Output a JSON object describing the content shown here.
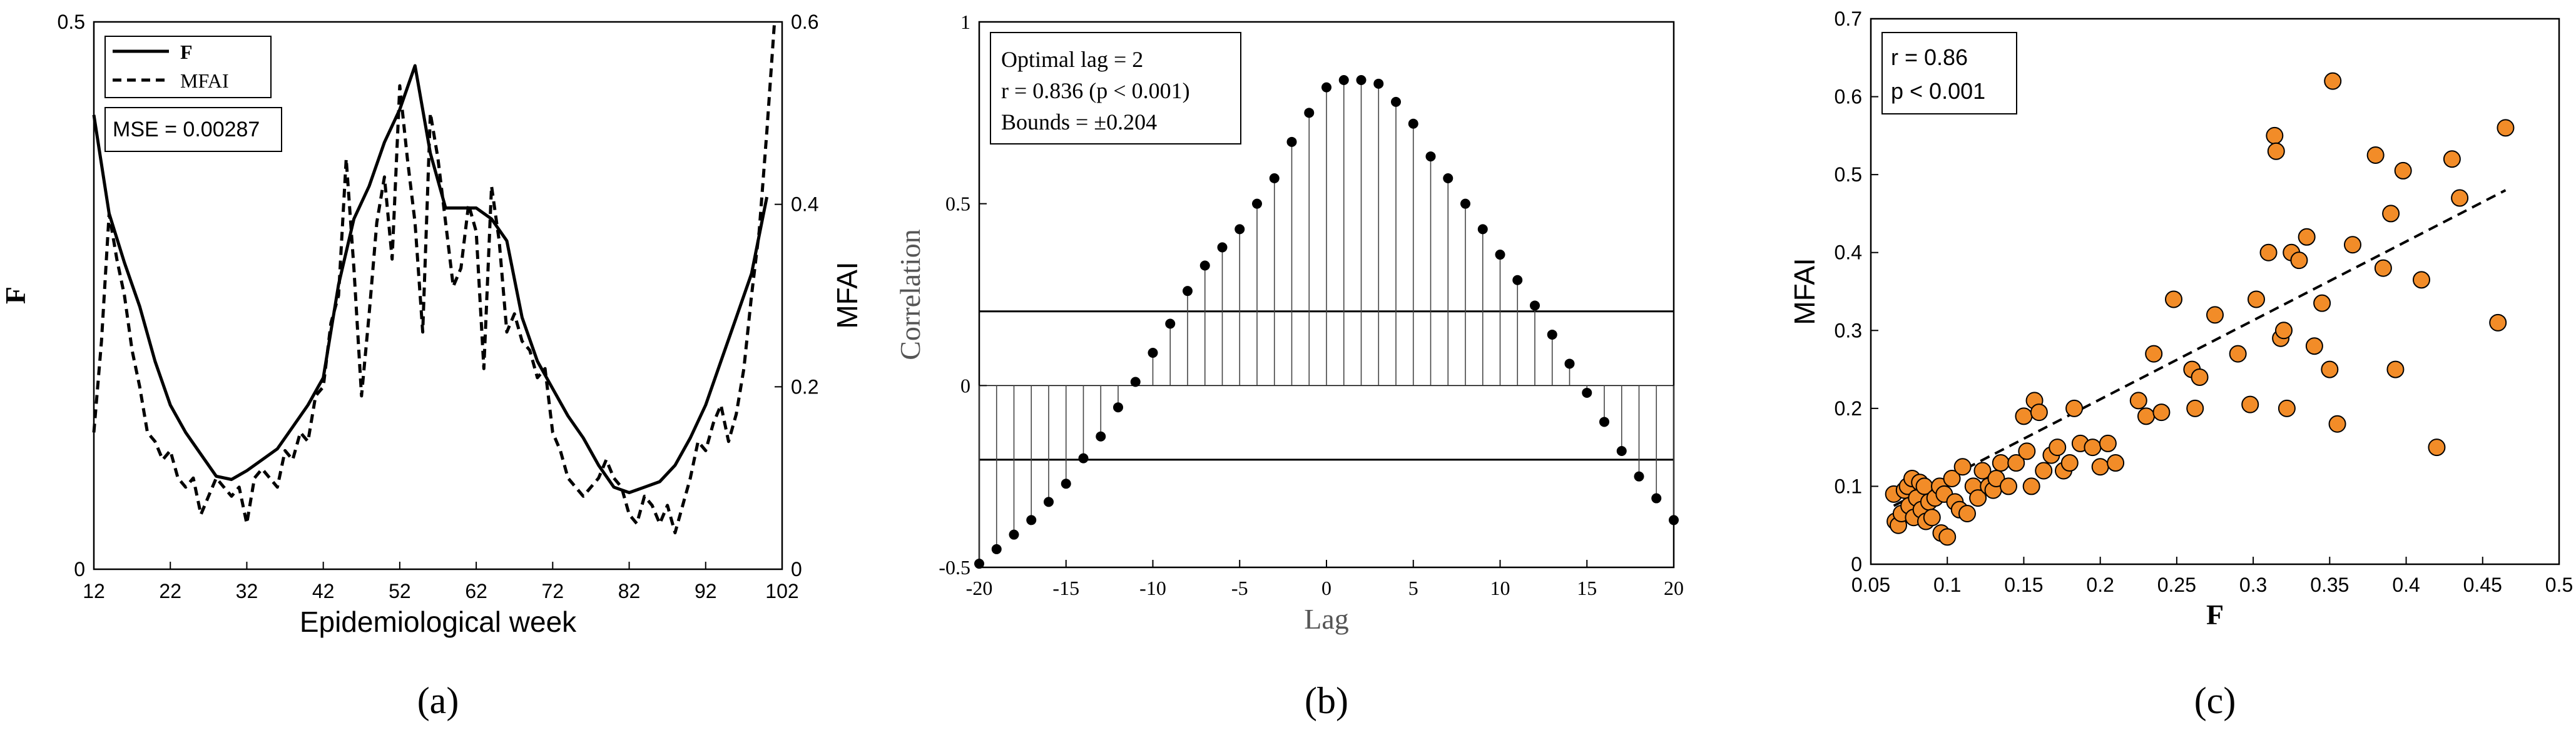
{
  "figure": {
    "captions": [
      "(a)",
      "(b)",
      "(c)"
    ]
  },
  "chart_data": [
    {
      "id": "a",
      "type": "line",
      "caption": "(a)",
      "xlabel": "Epidemiological week",
      "ylabel_left": "F",
      "ylabel_right": "MFAI",
      "xlim": [
        12,
        102
      ],
      "ylim_left": [
        0,
        0.5
      ],
      "ylim_right": [
        0,
        0.6
      ],
      "xticks": [
        12,
        22,
        32,
        42,
        52,
        62,
        72,
        82,
        92,
        102
      ],
      "yticks_left": [
        0,
        0.5
      ],
      "yticks_right": [
        0,
        0.2,
        0.4,
        0.6
      ],
      "annotation": "MSE = 0.00287",
      "series": [
        {
          "name": "F",
          "style": "solid",
          "axis": "left",
          "x": [
            12,
            14,
            16,
            18,
            20,
            22,
            24,
            26,
            28,
            30,
            32,
            34,
            36,
            38,
            40,
            42,
            44,
            46,
            48,
            50,
            52,
            54,
            56,
            58,
            60,
            62,
            64,
            66,
            68,
            70,
            72,
            74,
            76,
            78,
            80,
            82,
            84,
            86,
            88,
            90,
            92,
            94,
            96,
            98,
            100
          ],
          "values": [
            0.415,
            0.325,
            0.28,
            0.24,
            0.19,
            0.15,
            0.125,
            0.105,
            0.085,
            0.082,
            0.09,
            0.1,
            0.11,
            0.13,
            0.15,
            0.175,
            0.26,
            0.32,
            0.35,
            0.39,
            0.42,
            0.46,
            0.38,
            0.33,
            0.33,
            0.33,
            0.32,
            0.3,
            0.23,
            0.19,
            0.165,
            0.14,
            0.12,
            0.095,
            0.075,
            0.07,
            0.075,
            0.08,
            0.095,
            0.12,
            0.15,
            0.19,
            0.23,
            0.27,
            0.34
          ]
        },
        {
          "name": "MFAI",
          "style": "dashed",
          "axis": "right",
          "x": [
            12,
            13,
            14,
            15,
            16,
            17,
            18,
            19,
            20,
            21,
            22,
            23,
            24,
            25,
            26,
            27,
            28,
            29,
            30,
            31,
            32,
            33,
            34,
            35,
            36,
            37,
            38,
            39,
            40,
            41,
            42,
            43,
            44,
            45,
            46,
            47,
            48,
            49,
            50,
            51,
            52,
            53,
            54,
            55,
            56,
            57,
            58,
            59,
            60,
            61,
            62,
            63,
            64,
            65,
            66,
            67,
            68,
            69,
            70,
            71,
            72,
            73,
            74,
            75,
            76,
            77,
            78,
            79,
            80,
            81,
            82,
            83,
            84,
            85,
            86,
            87,
            88,
            89,
            90,
            91,
            92,
            93,
            94,
            95,
            96,
            97,
            98,
            99,
            100,
            101
          ],
          "values": [
            0.15,
            0.25,
            0.39,
            0.34,
            0.3,
            0.24,
            0.2,
            0.15,
            0.14,
            0.12,
            0.13,
            0.1,
            0.09,
            0.1,
            0.06,
            0.08,
            0.1,
            0.09,
            0.08,
            0.09,
            0.05,
            0.1,
            0.11,
            0.1,
            0.09,
            0.13,
            0.12,
            0.15,
            0.14,
            0.19,
            0.2,
            0.27,
            0.3,
            0.45,
            0.33,
            0.19,
            0.28,
            0.38,
            0.43,
            0.34,
            0.53,
            0.45,
            0.38,
            0.26,
            0.5,
            0.45,
            0.38,
            0.31,
            0.33,
            0.4,
            0.37,
            0.22,
            0.42,
            0.36,
            0.26,
            0.28,
            0.25,
            0.24,
            0.21,
            0.22,
            0.15,
            0.13,
            0.1,
            0.09,
            0.08,
            0.09,
            0.1,
            0.12,
            0.1,
            0.09,
            0.06,
            0.05,
            0.08,
            0.07,
            0.05,
            0.07,
            0.04,
            0.07,
            0.1,
            0.14,
            0.13,
            0.16,
            0.18,
            0.14,
            0.17,
            0.22,
            0.3,
            0.37,
            0.48,
            0.6
          ]
        }
      ]
    },
    {
      "id": "b",
      "type": "stem",
      "caption": "(b)",
      "xlabel": "Lag",
      "ylabel": "Correlation",
      "xlim": [
        -20,
        20
      ],
      "ylim": [
        -0.5,
        1
      ],
      "xticks": [
        -20,
        -15,
        -10,
        -5,
        0,
        5,
        10,
        15,
        20
      ],
      "yticks": [
        -0.5,
        0,
        0.5,
        1
      ],
      "bounds": 0.204,
      "annotation": [
        "Optimal lag = 2",
        "r = 0.836 (p < 0.001)",
        "Bounds = ±0.204"
      ],
      "x": [
        -20,
        -19,
        -18,
        -17,
        -16,
        -15,
        -14,
        -13,
        -12,
        -11,
        -10,
        -9,
        -8,
        -7,
        -6,
        -5,
        -4,
        -3,
        -2,
        -1,
        0,
        1,
        2,
        3,
        4,
        5,
        6,
        7,
        8,
        9,
        10,
        11,
        12,
        13,
        14,
        15,
        16,
        17,
        18,
        19,
        20
      ],
      "values": [
        -0.49,
        -0.45,
        -0.41,
        -0.37,
        -0.32,
        -0.27,
        -0.2,
        -0.14,
        -0.06,
        0.01,
        0.09,
        0.17,
        0.26,
        0.33,
        0.38,
        0.43,
        0.5,
        0.57,
        0.67,
        0.75,
        0.82,
        0.84,
        0.84,
        0.83,
        0.78,
        0.72,
        0.63,
        0.57,
        0.5,
        0.43,
        0.36,
        0.29,
        0.22,
        0.14,
        0.06,
        -0.02,
        -0.1,
        -0.18,
        -0.25,
        -0.31,
        -0.37
      ]
    },
    {
      "id": "c",
      "type": "scatter",
      "caption": "(c)",
      "xlabel": "F",
      "ylabel": "MFAI",
      "xlim": [
        0.05,
        0.5
      ],
      "ylim": [
        0,
        0.7
      ],
      "xticks": [
        0.05,
        0.1,
        0.15,
        0.2,
        0.25,
        0.3,
        0.35,
        0.4,
        0.45,
        0.5
      ],
      "yticks": [
        0,
        0.1,
        0.2,
        0.3,
        0.4,
        0.5,
        0.6,
        0.7
      ],
      "annotation": [
        "r = 0.86",
        "p < 0.001"
      ],
      "point_color": "#F28C28",
      "trendline": {
        "x": [
          0.065,
          0.465
        ],
        "y": [
          0.075,
          0.48
        ]
      },
      "points": [
        [
          0.065,
          0.09
        ],
        [
          0.066,
          0.055
        ],
        [
          0.068,
          0.05
        ],
        [
          0.07,
          0.065
        ],
        [
          0.072,
          0.095
        ],
        [
          0.074,
          0.1
        ],
        [
          0.075,
          0.075
        ],
        [
          0.077,
          0.11
        ],
        [
          0.078,
          0.06
        ],
        [
          0.08,
          0.085
        ],
        [
          0.082,
          0.105
        ],
        [
          0.083,
          0.07
        ],
        [
          0.085,
          0.1
        ],
        [
          0.086,
          0.055
        ],
        [
          0.088,
          0.08
        ],
        [
          0.09,
          0.06
        ],
        [
          0.092,
          0.085
        ],
        [
          0.095,
          0.1
        ],
        [
          0.096,
          0.04
        ],
        [
          0.098,
          0.09
        ],
        [
          0.1,
          0.035
        ],
        [
          0.103,
          0.11
        ],
        [
          0.105,
          0.08
        ],
        [
          0.108,
          0.07
        ],
        [
          0.11,
          0.125
        ],
        [
          0.113,
          0.065
        ],
        [
          0.117,
          0.1
        ],
        [
          0.12,
          0.085
        ],
        [
          0.123,
          0.12
        ],
        [
          0.127,
          0.1
        ],
        [
          0.13,
          0.095
        ],
        [
          0.132,
          0.11
        ],
        [
          0.135,
          0.13
        ],
        [
          0.14,
          0.1
        ],
        [
          0.145,
          0.13
        ],
        [
          0.15,
          0.19
        ],
        [
          0.152,
          0.145
        ],
        [
          0.155,
          0.1
        ],
        [
          0.157,
          0.21
        ],
        [
          0.16,
          0.195
        ],
        [
          0.163,
          0.12
        ],
        [
          0.168,
          0.14
        ],
        [
          0.172,
          0.15
        ],
        [
          0.176,
          0.12
        ],
        [
          0.18,
          0.13
        ],
        [
          0.183,
          0.2
        ],
        [
          0.187,
          0.155
        ],
        [
          0.195,
          0.15
        ],
        [
          0.2,
          0.125
        ],
        [
          0.205,
          0.155
        ],
        [
          0.21,
          0.13
        ],
        [
          0.225,
          0.21
        ],
        [
          0.23,
          0.19
        ],
        [
          0.235,
          0.27
        ],
        [
          0.24,
          0.195
        ],
        [
          0.248,
          0.34
        ],
        [
          0.26,
          0.25
        ],
        [
          0.262,
          0.2
        ],
        [
          0.265,
          0.24
        ],
        [
          0.275,
          0.32
        ],
        [
          0.29,
          0.27
        ],
        [
          0.298,
          0.205
        ],
        [
          0.302,
          0.34
        ],
        [
          0.31,
          0.4
        ],
        [
          0.314,
          0.55
        ],
        [
          0.315,
          0.53
        ],
        [
          0.318,
          0.29
        ],
        [
          0.32,
          0.3
        ],
        [
          0.322,
          0.2
        ],
        [
          0.325,
          0.4
        ],
        [
          0.33,
          0.39
        ],
        [
          0.335,
          0.42
        ],
        [
          0.34,
          0.28
        ],
        [
          0.345,
          0.335
        ],
        [
          0.35,
          0.25
        ],
        [
          0.352,
          0.62
        ],
        [
          0.355,
          0.18
        ],
        [
          0.365,
          0.41
        ],
        [
          0.38,
          0.525
        ],
        [
          0.385,
          0.38
        ],
        [
          0.39,
          0.45
        ],
        [
          0.393,
          0.25
        ],
        [
          0.398,
          0.505
        ],
        [
          0.41,
          0.365
        ],
        [
          0.42,
          0.15
        ],
        [
          0.43,
          0.52
        ],
        [
          0.435,
          0.47
        ],
        [
          0.46,
          0.31
        ],
        [
          0.465,
          0.56
        ]
      ]
    }
  ]
}
